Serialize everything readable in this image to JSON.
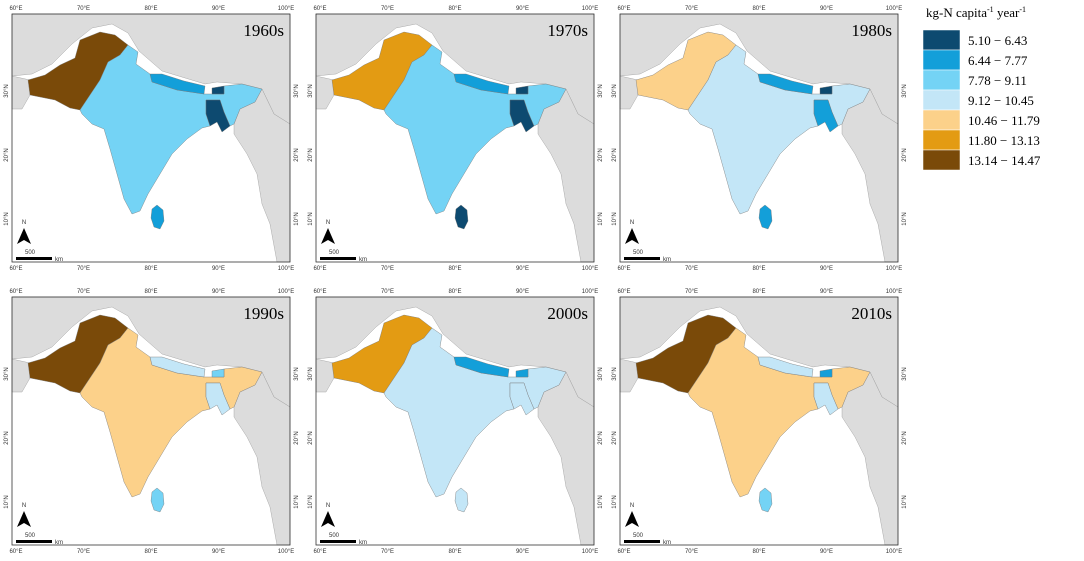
{
  "axes": {
    "xticks": [
      "60°E",
      "70°E",
      "80°E",
      "90°E",
      "100°E"
    ],
    "yticks": [
      "10°N",
      "20°N",
      "30°N"
    ]
  },
  "north": "N",
  "scale_value": 500,
  "scale_unit": "km",
  "legend": {
    "title": [
      "kg-N capita",
      "-1",
      " year",
      "-1"
    ],
    "classes": [
      {
        "label": "5.10 − 6.43",
        "color": "#0d4a70"
      },
      {
        "label": "6.44 − 7.77",
        "color": "#139fd9"
      },
      {
        "label": "7.78 − 9.11",
        "color": "#74d3f5"
      },
      {
        "label": "9.12 − 10.45",
        "color": "#c3e6f7"
      },
      {
        "label": "10.46 − 11.79",
        "color": "#fcd18a"
      },
      {
        "label": "11.80 − 13.13",
        "color": "#e39b13"
      },
      {
        "label": "13.14 − 14.47",
        "color": "#7a4a09"
      }
    ]
  },
  "panels": [
    {
      "title": "1960s",
      "fills": [
        "#7a4a09",
        "#74d3f5",
        "#139fd9",
        "#0d4a70",
        "#0d4a70",
        "#139fd9"
      ]
    },
    {
      "title": "1970s",
      "fills": [
        "#e39b13",
        "#74d3f5",
        "#139fd9",
        "#0d4a70",
        "#0d4a70",
        "#0d4a70"
      ]
    },
    {
      "title": "1980s",
      "fills": [
        "#fcd18a",
        "#c3e6f7",
        "#139fd9",
        "#0d4a70",
        "#139fd9",
        "#139fd9"
      ]
    },
    {
      "title": "1990s",
      "fills": [
        "#7a4a09",
        "#fcd18a",
        "#c3e6f7",
        "#74d3f5",
        "#c3e6f7",
        "#74d3f5"
      ]
    },
    {
      "title": "2000s",
      "fills": [
        "#e39b13",
        "#c3e6f7",
        "#139fd9",
        "#139fd9",
        "#c3e6f7",
        "#c3e6f7"
      ]
    },
    {
      "title": "2010s",
      "fills": [
        "#7a4a09",
        "#fcd18a",
        "#c3e6f7",
        "#139fd9",
        "#c3e6f7",
        "#74d3f5"
      ]
    }
  ]
}
